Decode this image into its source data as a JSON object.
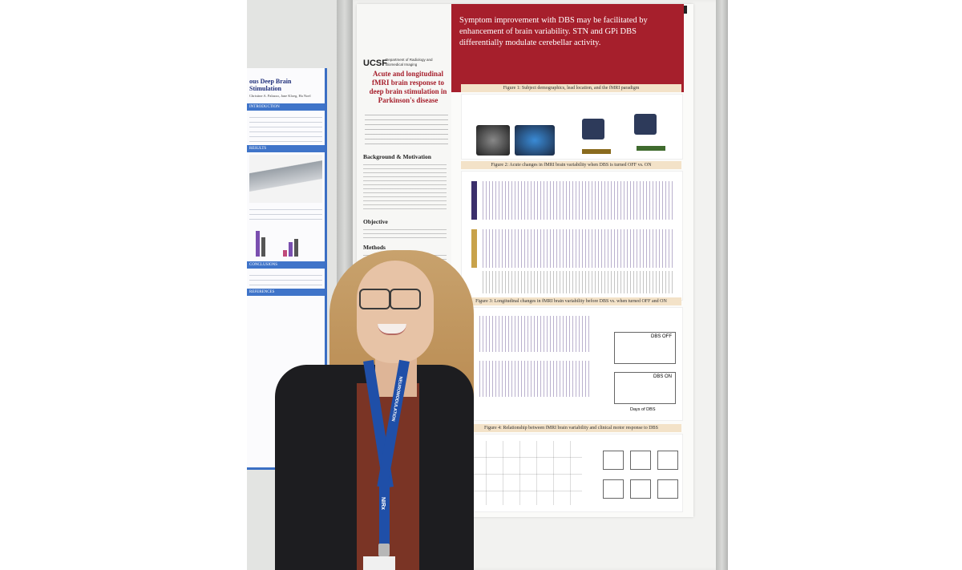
{
  "left_poster": {
    "title": "ous Deep Brain Stimulation",
    "authors": "Christine A. Palazzo, Jane Kloeg, Ha Noel",
    "sections": [
      "INTRODUCTION",
      "RESULTS",
      "CONCLUSIONS",
      "REFERENCES"
    ]
  },
  "poster": {
    "number_label": "#",
    "dept": "Department of Radiology and Biomedical Imaging",
    "logo": "UCSF",
    "title": "Acute and longitudinal fMRI brain response to deep brain stimulation in Parkinson's disease",
    "header": "Symptom improvement with DBS may be facilitated by enhancement of brain variability. STN and GPi DBS differentially modulate cerebellar activity.",
    "sections": {
      "background": "Background & Motivation",
      "objective": "Objective",
      "methods": "Methods"
    },
    "figures": {
      "fig1": "Figure 1: Subject demographics, lead location, and the fMRI paradigm",
      "fig2": "Figure 2: Acute changes in fMRI brain variability when DBS is turned OFF vs. ON",
      "fig3": "Figure 3: Longitudinal changes in fMRI brain variability before DBS vs. when turned OFF and ON",
      "fig4": "Figure 4: Relationship between fMRI brain variability and clinical motor response to DBS"
    },
    "fig3_labels": {
      "dbs_off": "DBS OFF",
      "dbs_on": "DBS ON",
      "x_axis": "Days of DBS"
    }
  },
  "lanyard": {
    "text": "NEUROMODULATION",
    "brand": "NIRx"
  }
}
